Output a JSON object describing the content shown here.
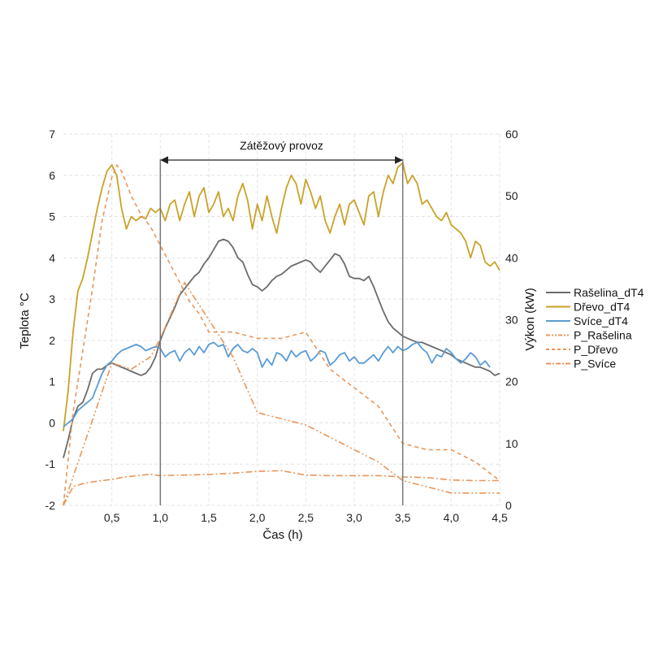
{
  "chart_data": {
    "type": "line",
    "title": "",
    "xlabel": "Čas (h)",
    "ylabel": "Teplota °C",
    "y2label": "Výkon (kW)",
    "xlim": [
      0,
      4.5
    ],
    "ylim": [
      -2,
      7
    ],
    "y2lim": [
      0,
      60
    ],
    "x_ticks": [
      0.5,
      1.0,
      1.5,
      2.0,
      2.5,
      3.0,
      3.5,
      4.0,
      4.5
    ],
    "x_tick_labels": [
      "0,5",
      "1,0",
      "1,5",
      "2,0",
      "2,5",
      "3,0",
      "3,5",
      "4,0",
      "4,5"
    ],
    "y_ticks": [
      -2,
      -1,
      0,
      1,
      2,
      3,
      4,
      5,
      6,
      7
    ],
    "y_tick_labels": [
      "-2",
      "-1",
      "0",
      "1",
      "2",
      "3",
      "4",
      "5",
      "6",
      "7"
    ],
    "y2_ticks": [
      0,
      10,
      20,
      30,
      40,
      50,
      60
    ],
    "y2_tick_labels": [
      "0",
      "10",
      "20",
      "30",
      "40",
      "50",
      "60"
    ],
    "grid": true,
    "legend_position": "right",
    "annotations": {
      "load_label": "Zátěžový provoz",
      "load_start": 1.0,
      "load_end": 3.5
    },
    "series": [
      {
        "name": "Rašelina_dT4",
        "axis": "left",
        "color": "#6b6b6b",
        "style": "solid",
        "x": [
          0,
          0.05,
          0.1,
          0.15,
          0.2,
          0.25,
          0.3,
          0.35,
          0.4,
          0.45,
          0.5,
          0.55,
          0.6,
          0.65,
          0.7,
          0.75,
          0.8,
          0.85,
          0.9,
          0.95,
          1.0,
          1.05,
          1.1,
          1.15,
          1.2,
          1.25,
          1.3,
          1.35,
          1.4,
          1.45,
          1.5,
          1.55,
          1.6,
          1.65,
          1.7,
          1.75,
          1.8,
          1.85,
          1.9,
          1.95,
          2.0,
          2.05,
          2.1,
          2.15,
          2.2,
          2.25,
          2.3,
          2.35,
          2.4,
          2.45,
          2.5,
          2.55,
          2.6,
          2.65,
          2.7,
          2.75,
          2.8,
          2.85,
          2.9,
          2.95,
          3.0,
          3.05,
          3.1,
          3.15,
          3.2,
          3.25,
          3.3,
          3.35,
          3.4,
          3.45,
          3.5,
          3.55,
          3.6,
          3.65,
          3.7,
          3.75,
          3.8,
          3.85,
          3.9,
          3.95,
          4.0,
          4.05,
          4.1,
          4.15,
          4.2,
          4.25,
          4.3,
          4.35,
          4.4,
          4.45,
          4.5
        ],
        "values": [
          -0.85,
          -0.4,
          0.1,
          0.4,
          0.5,
          0.8,
          1.2,
          1.3,
          1.3,
          1.4,
          1.45,
          1.4,
          1.35,
          1.3,
          1.25,
          1.2,
          1.15,
          1.2,
          1.35,
          1.6,
          2.0,
          2.3,
          2.55,
          2.8,
          3.1,
          3.25,
          3.4,
          3.55,
          3.65,
          3.85,
          4.0,
          4.2,
          4.4,
          4.45,
          4.4,
          4.25,
          4.0,
          3.9,
          3.6,
          3.35,
          3.3,
          3.2,
          3.3,
          3.45,
          3.55,
          3.6,
          3.7,
          3.8,
          3.85,
          3.9,
          3.95,
          3.9,
          3.75,
          3.65,
          3.8,
          3.95,
          4.1,
          4.05,
          3.85,
          3.55,
          3.5,
          3.5,
          3.45,
          3.55,
          3.3,
          3.0,
          2.7,
          2.45,
          2.3,
          2.2,
          2.1,
          2.05,
          2.0,
          1.95,
          1.95,
          1.9,
          1.85,
          1.8,
          1.75,
          1.7,
          1.65,
          1.55,
          1.5,
          1.45,
          1.4,
          1.35,
          1.35,
          1.3,
          1.25,
          1.15,
          1.2
        ]
      },
      {
        "name": "Dřevo_dT4",
        "axis": "left",
        "color": "#c9a227",
        "style": "solid",
        "x": [
          0,
          0.05,
          0.1,
          0.15,
          0.2,
          0.25,
          0.3,
          0.35,
          0.4,
          0.45,
          0.5,
          0.55,
          0.6,
          0.65,
          0.7,
          0.75,
          0.8,
          0.85,
          0.9,
          0.95,
          1.0,
          1.05,
          1.1,
          1.15,
          1.2,
          1.25,
          1.3,
          1.35,
          1.4,
          1.45,
          1.5,
          1.55,
          1.6,
          1.65,
          1.7,
          1.75,
          1.8,
          1.85,
          1.9,
          1.95,
          2.0,
          2.05,
          2.1,
          2.15,
          2.2,
          2.25,
          2.3,
          2.35,
          2.4,
          2.45,
          2.5,
          2.55,
          2.6,
          2.65,
          2.7,
          2.75,
          2.8,
          2.85,
          2.9,
          2.95,
          3.0,
          3.05,
          3.1,
          3.15,
          3.2,
          3.25,
          3.3,
          3.35,
          3.4,
          3.45,
          3.5,
          3.55,
          3.6,
          3.65,
          3.7,
          3.75,
          3.8,
          3.85,
          3.9,
          3.95,
          4.0,
          4.05,
          4.1,
          4.15,
          4.2,
          4.25,
          4.3,
          4.35,
          4.4,
          4.45,
          4.5
        ],
        "values": [
          -0.2,
          0.8,
          2.2,
          3.2,
          3.5,
          4.0,
          4.6,
          5.2,
          5.7,
          6.1,
          6.25,
          6.0,
          5.2,
          4.7,
          5.0,
          4.9,
          5.0,
          4.95,
          5.2,
          5.1,
          5.2,
          4.9,
          5.3,
          5.4,
          4.9,
          5.3,
          5.6,
          5.0,
          5.5,
          5.7,
          5.1,
          5.3,
          5.6,
          5.0,
          5.2,
          4.9,
          5.5,
          5.8,
          5.4,
          4.7,
          5.3,
          4.9,
          5.5,
          5.0,
          4.6,
          5.2,
          5.7,
          6.0,
          5.8,
          5.3,
          5.9,
          5.6,
          5.2,
          5.5,
          4.9,
          4.6,
          5.0,
          5.3,
          4.8,
          5.3,
          5.4,
          5.1,
          4.8,
          5.5,
          5.6,
          5.0,
          5.6,
          6.0,
          5.8,
          6.2,
          6.3,
          5.8,
          6.0,
          5.8,
          5.3,
          5.4,
          5.2,
          5.0,
          4.9,
          5.1,
          4.8,
          4.7,
          4.6,
          4.4,
          4.0,
          4.4,
          4.3,
          3.9,
          3.8,
          3.9,
          3.7
        ]
      },
      {
        "name": "Svíce_dT4",
        "axis": "left",
        "color": "#5b9bd5",
        "style": "solid",
        "x": [
          0,
          0.05,
          0.1,
          0.15,
          0.2,
          0.25,
          0.3,
          0.35,
          0.4,
          0.45,
          0.5,
          0.55,
          0.6,
          0.65,
          0.7,
          0.75,
          0.8,
          0.85,
          0.9,
          0.95,
          1.0,
          1.05,
          1.1,
          1.15,
          1.2,
          1.25,
          1.3,
          1.35,
          1.4,
          1.45,
          1.5,
          1.55,
          1.6,
          1.65,
          1.7,
          1.75,
          1.8,
          1.85,
          1.9,
          1.95,
          2.0,
          2.05,
          2.1,
          2.15,
          2.2,
          2.25,
          2.3,
          2.35,
          2.4,
          2.45,
          2.5,
          2.55,
          2.6,
          2.65,
          2.7,
          2.75,
          2.8,
          2.85,
          2.9,
          2.95,
          3.0,
          3.05,
          3.1,
          3.15,
          3.2,
          3.25,
          3.3,
          3.35,
          3.4,
          3.45,
          3.5,
          3.55,
          3.6,
          3.65,
          3.7,
          3.75,
          3.8,
          3.85,
          3.9,
          3.95,
          4.0,
          4.05,
          4.1,
          4.15,
          4.2,
          4.25,
          4.3,
          4.35,
          4.4
        ],
        "values": [
          -0.1,
          0.0,
          0.1,
          0.3,
          0.4,
          0.5,
          0.6,
          0.9,
          1.2,
          1.4,
          1.5,
          1.65,
          1.75,
          1.8,
          1.85,
          1.9,
          1.85,
          1.75,
          1.8,
          1.85,
          1.8,
          1.6,
          1.7,
          1.75,
          1.5,
          1.7,
          1.8,
          1.65,
          1.85,
          1.7,
          1.9,
          1.95,
          1.85,
          1.9,
          1.6,
          1.8,
          1.9,
          1.75,
          1.7,
          1.8,
          1.7,
          1.35,
          1.55,
          1.4,
          1.7,
          1.65,
          1.5,
          1.75,
          1.6,
          1.7,
          1.75,
          1.5,
          1.6,
          1.75,
          1.7,
          1.4,
          1.5,
          1.65,
          1.7,
          1.5,
          1.6,
          1.45,
          1.45,
          1.55,
          1.65,
          1.5,
          1.7,
          1.85,
          1.7,
          1.85,
          1.75,
          1.8,
          1.9,
          1.95,
          1.8,
          1.7,
          1.45,
          1.65,
          1.6,
          1.8,
          1.7,
          1.55,
          1.45,
          1.55,
          1.7,
          1.6,
          1.4,
          1.5,
          1.35
        ]
      },
      {
        "name": "P_Rašelina",
        "axis": "right",
        "color": "#e8965a",
        "style": "dashdotdot",
        "x": [
          0,
          0.5,
          0.7,
          0.9,
          1.0,
          1.25,
          1.5,
          1.75,
          2.0,
          2.25,
          2.5,
          2.75,
          3.0,
          3.25,
          3.5,
          3.75,
          4.0,
          4.25,
          4.5
        ],
        "values": [
          0,
          23,
          22,
          24,
          27,
          36,
          30,
          24,
          15,
          14,
          13,
          11,
          9,
          7,
          4,
          3,
          2,
          2,
          2
        ]
      },
      {
        "name": "P_Dřevo",
        "axis": "right",
        "color": "#e8965a",
        "style": "dashed",
        "x": [
          0,
          0.1,
          0.2,
          0.3,
          0.4,
          0.5,
          0.55,
          0.6,
          0.7,
          0.8,
          0.9,
          1.0,
          1.1,
          1.2,
          1.3,
          1.4,
          1.5,
          1.75,
          2.0,
          2.25,
          2.5,
          2.75,
          3.0,
          3.25,
          3.5,
          3.75,
          4.0,
          4.25,
          4.5
        ],
        "values": [
          0,
          15,
          25,
          35,
          46,
          53,
          55,
          54,
          50,
          47,
          45,
          42,
          39,
          36,
          33,
          31,
          28,
          28,
          27,
          27,
          28,
          22,
          19,
          16,
          10,
          9,
          9,
          7,
          4
        ]
      },
      {
        "name": "P_Svíce",
        "axis": "right",
        "color": "#e8965a",
        "style": "dashdot",
        "x": [
          0,
          0.1,
          0.2,
          0.3,
          0.4,
          0.5,
          0.6,
          0.7,
          0.8,
          0.9,
          1.0,
          1.25,
          1.5,
          1.75,
          2.0,
          2.25,
          2.5,
          2.75,
          3.0,
          3.25,
          3.5,
          3.75,
          4.0,
          4.25,
          4.5
        ],
        "values": [
          0,
          3,
          3.5,
          3.8,
          4.0,
          4.2,
          4.5,
          4.7,
          4.9,
          5.0,
          4.8,
          4.9,
          5.0,
          5.2,
          5.5,
          5.6,
          4.9,
          4.8,
          4.8,
          4.8,
          4.6,
          4.5,
          4.1,
          4.0,
          4.0
        ]
      }
    ]
  }
}
